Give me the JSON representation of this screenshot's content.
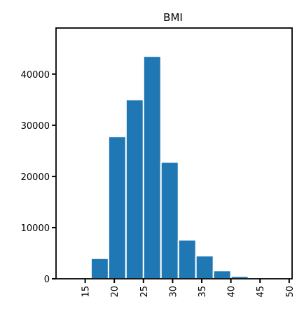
{
  "chart_data": {
    "type": "bar",
    "title": "BMI",
    "xlabel": "",
    "ylabel": "",
    "bins": [
      {
        "from": 16,
        "to": 19,
        "count": 4000
      },
      {
        "from": 19,
        "to": 22,
        "count": 27800
      },
      {
        "from": 22,
        "to": 25,
        "count": 35000
      },
      {
        "from": 25,
        "to": 28,
        "count": 43500
      },
      {
        "from": 28,
        "to": 31,
        "count": 22800
      },
      {
        "from": 31,
        "to": 34,
        "count": 7600
      },
      {
        "from": 34,
        "to": 37,
        "count": 4500
      },
      {
        "from": 37,
        "to": 40,
        "count": 1600
      },
      {
        "from": 40,
        "to": 43,
        "count": 500
      }
    ],
    "xticks": [
      15,
      20,
      25,
      30,
      35,
      40,
      45,
      50
    ],
    "yticks": [
      0,
      10000,
      20000,
      30000,
      40000
    ],
    "xlim": [
      10,
      50.5
    ],
    "ylim": [
      0,
      49000
    ],
    "bar_color": "#1f77b4",
    "grid": false,
    "legend": "none"
  }
}
